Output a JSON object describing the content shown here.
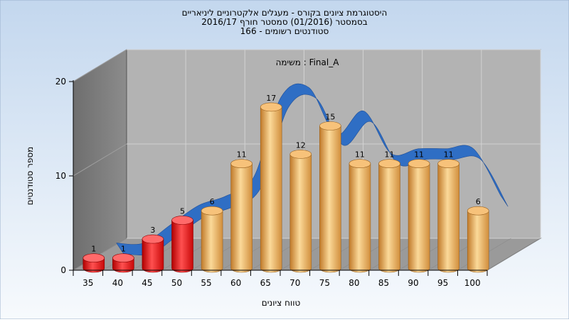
{
  "chart_data": {
    "type": "bar",
    "title_lines": [
      "היסטוגרמת ציונים בקורס - מעגלים אלקטרוניים ליניאריים",
      "בסמסטר  (01/2016)  סמסטר חורף 2016/17",
      "סטודנטים רשומים - 166"
    ],
    "task_label": "משימה : Final_A",
    "xlabel": "טווח ציונים",
    "ylabel": "מספר סטודנטים",
    "categories": [
      "35",
      "40",
      "45",
      "50",
      "55",
      "60",
      "65",
      "70",
      "75",
      "80",
      "85",
      "90",
      "95",
      "100"
    ],
    "values": [
      1,
      1,
      3,
      5,
      6,
      11,
      17,
      12,
      15,
      11,
      11,
      11,
      11,
      6
    ],
    "bar_colors": [
      "red",
      "red",
      "red",
      "red",
      "orange",
      "orange",
      "orange",
      "orange",
      "orange",
      "orange",
      "orange",
      "orange",
      "orange",
      "orange"
    ],
    "trend_line": [
      1,
      1,
      3,
      5,
      6,
      8,
      16.5,
      17.5,
      12.5,
      15,
      10.5,
      11,
      11,
      11,
      6
    ],
    "ylim": [
      0,
      20
    ],
    "yticks": [
      0,
      10,
      20
    ],
    "grid": true,
    "colors": {
      "background_top": "#c3d7ee",
      "background_bottom": "#f7fafd",
      "back_wall": "#b3b3b3",
      "left_wall": "#7a7a7a",
      "floor": "#9a9a9a",
      "bar_orange": "#e0a450",
      "bar_red": "#e01818",
      "trend": "#2f6ec4"
    }
  }
}
